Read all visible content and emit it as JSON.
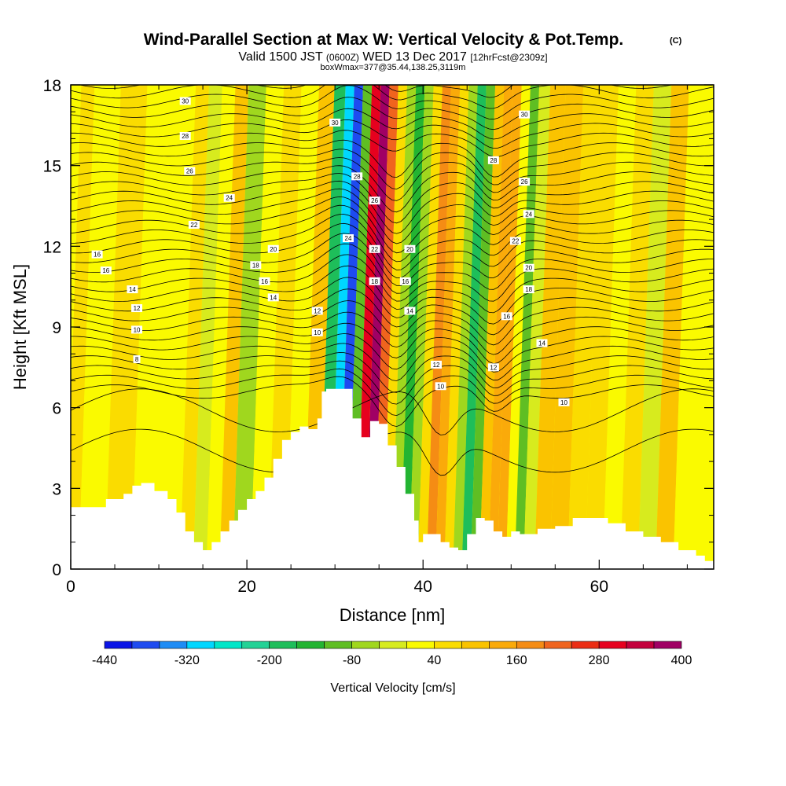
{
  "header": {
    "title": "Wind-Parallel Section at Max W: Vertical Velocity & Pot.Temp.",
    "title_mark": "(C)",
    "valid_prefix": "Valid 1500 JST",
    "valid_utc": "(0600Z)",
    "valid_date": "WED 13 Dec 2017",
    "forecast": "[12hrFcst@2309z]",
    "boxline": "boxWmax=377@35.44,138.25,3119m"
  },
  "chart_data": {
    "type": "heatmap",
    "title": "Wind-Parallel Section at Max W: Vertical Velocity & Pot.Temp.",
    "xlabel": "Distance [nm]",
    "ylabel": "Height [Kft MSL]",
    "xlim": [
      0,
      73
    ],
    "ylim": [
      0,
      18
    ],
    "xticks": [
      0,
      20,
      40,
      60
    ],
    "yticks": [
      0,
      3,
      6,
      9,
      12,
      15,
      18
    ],
    "colorbar": {
      "label": "Vertical Velocity [cm/s]",
      "tick_labels": [
        "-440",
        "-320",
        "-200",
        "-80",
        "40",
        "160",
        "280",
        "400"
      ],
      "tick_values": [
        -440,
        -320,
        -200,
        -80,
        40,
        160,
        280,
        400
      ],
      "bins": [
        -440,
        -400,
        -360,
        -320,
        -280,
        -240,
        -200,
        -160,
        -120,
        -80,
        -40,
        0,
        40,
        80,
        120,
        160,
        200,
        240,
        280,
        320,
        360,
        400
      ],
      "colors": [
        "#0a14e6",
        "#1e4bf0",
        "#1e8cf5",
        "#00d7ff",
        "#00e6c8",
        "#23d296",
        "#1ebe5a",
        "#23b432",
        "#5fbe23",
        "#a0d71e",
        "#d7eb1e",
        "#fafa00",
        "#fadc00",
        "#fac300",
        "#faaa0a",
        "#f58c14",
        "#f0641e",
        "#eb2d14",
        "#e6001e",
        "#c3003c",
        "#a00064",
        "#78008c"
      ]
    },
    "velocity_columns": [
      {
        "x": 0,
        "w": 40
      },
      {
        "x": 3,
        "w": 20
      },
      {
        "x": 6,
        "w": 60
      },
      {
        "x": 9,
        "w": 10
      },
      {
        "x": 12,
        "w": 30
      },
      {
        "x": 14,
        "w": 70
      },
      {
        "x": 15,
        "w": -40
      },
      {
        "x": 17,
        "w": 10
      },
      {
        "x": 18,
        "w": 90
      },
      {
        "x": 20,
        "w": -70
      },
      {
        "x": 22,
        "w": 30
      },
      {
        "x": 24,
        "w": 60
      },
      {
        "x": 26,
        "w": 20
      },
      {
        "x": 28,
        "w": 80
      },
      {
        "x": 29.5,
        "w": -200
      },
      {
        "x": 30.5,
        "w": -320
      },
      {
        "x": 31.5,
        "w": -400
      },
      {
        "x": 32.5,
        "w": -120
      },
      {
        "x": 33.5,
        "w": 290
      },
      {
        "x": 34.5,
        "w": 360
      },
      {
        "x": 35.5,
        "w": 230
      },
      {
        "x": 36.5,
        "w": 70
      },
      {
        "x": 37.5,
        "w": -80
      },
      {
        "x": 38.5,
        "w": -150
      },
      {
        "x": 39.5,
        "w": -60
      },
      {
        "x": 40.5,
        "w": 50
      },
      {
        "x": 41.5,
        "w": 160
      },
      {
        "x": 42.5,
        "w": 130
      },
      {
        "x": 43.5,
        "w": 60
      },
      {
        "x": 44.5,
        "w": -80
      },
      {
        "x": 45.5,
        "w": -200
      },
      {
        "x": 46.5,
        "w": -120
      },
      {
        "x": 47.5,
        "w": 80
      },
      {
        "x": 48.5,
        "w": 150
      },
      {
        "x": 49.5,
        "w": 120
      },
      {
        "x": 50.5,
        "w": 20
      },
      {
        "x": 51.5,
        "w": -110
      },
      {
        "x": 52.5,
        "w": -40
      },
      {
        "x": 54,
        "w": 110
      },
      {
        "x": 56,
        "w": 90
      },
      {
        "x": 58,
        "w": 40
      },
      {
        "x": 60,
        "w": 70
      },
      {
        "x": 62,
        "w": 20
      },
      {
        "x": 64,
        "w": 50
      },
      {
        "x": 66,
        "w": -40
      },
      {
        "x": 68,
        "w": 90
      },
      {
        "x": 70,
        "w": 30
      },
      {
        "x": 72,
        "w": 20
      }
    ],
    "terrain": [
      [
        0,
        2.3
      ],
      [
        2,
        2.3
      ],
      [
        4,
        2.6
      ],
      [
        6,
        2.8
      ],
      [
        7,
        3.1
      ],
      [
        8,
        3.2
      ],
      [
        9.5,
        2.9
      ],
      [
        11,
        2.6
      ],
      [
        12,
        2.1
      ],
      [
        13,
        1.4
      ],
      [
        14,
        1.0
      ],
      [
        15,
        0.7
      ],
      [
        16,
        1.0
      ],
      [
        17,
        1.4
      ],
      [
        18,
        1.8
      ],
      [
        19,
        2.2
      ],
      [
        20,
        2.6
      ],
      [
        21,
        2.9
      ],
      [
        22,
        3.4
      ],
      [
        23,
        4.1
      ],
      [
        24,
        4.8
      ],
      [
        25,
        5.1
      ],
      [
        26,
        5.3
      ],
      [
        27,
        5.2
      ],
      [
        28,
        5.6
      ],
      [
        28.5,
        6.6
      ],
      [
        29,
        6.7
      ],
      [
        31,
        6.7
      ],
      [
        32,
        5.6
      ],
      [
        33,
        4.9
      ],
      [
        34,
        5.5
      ],
      [
        35,
        5.4
      ],
      [
        36,
        4.6
      ],
      [
        37,
        3.8
      ],
      [
        38,
        2.8
      ],
      [
        39,
        1.8
      ],
      [
        39.5,
        1.0
      ],
      [
        40,
        1.3
      ],
      [
        41,
        1.3
      ],
      [
        42,
        1.0
      ],
      [
        43,
        0.8
      ],
      [
        44,
        0.7
      ],
      [
        45,
        1.3
      ],
      [
        46,
        1.9
      ],
      [
        47,
        1.8
      ],
      [
        48,
        1.4
      ],
      [
        49,
        1.2
      ],
      [
        50,
        1.4
      ],
      [
        51,
        1.3
      ],
      [
        53,
        1.5
      ],
      [
        55,
        1.6
      ],
      [
        57,
        1.9
      ],
      [
        59,
        1.9
      ],
      [
        61,
        1.7
      ],
      [
        63,
        1.4
      ],
      [
        65,
        1.2
      ],
      [
        67,
        1.0
      ],
      [
        69,
        0.7
      ],
      [
        71,
        0.5
      ],
      [
        72,
        0.3
      ],
      [
        73,
        0.3
      ]
    ],
    "theta_labels": [
      {
        "text": "30",
        "x": 13,
        "y": 17.4
      },
      {
        "text": "28",
        "x": 13,
        "y": 16.1
      },
      {
        "text": "26",
        "x": 13.5,
        "y": 14.8
      },
      {
        "text": "24",
        "x": 18,
        "y": 13.8
      },
      {
        "text": "22",
        "x": 14,
        "y": 12.8
      },
      {
        "text": "20",
        "x": 23,
        "y": 11.9
      },
      {
        "text": "18",
        "x": 21,
        "y": 11.3
      },
      {
        "text": "16",
        "x": 22,
        "y": 10.7
      },
      {
        "text": "14",
        "x": 23,
        "y": 10.1
      },
      {
        "text": "12",
        "x": 28,
        "y": 9.6
      },
      {
        "text": "10",
        "x": 28,
        "y": 8.8
      },
      {
        "text": "16",
        "x": 3,
        "y": 11.7
      },
      {
        "text": "16",
        "x": 4,
        "y": 11.1
      },
      {
        "text": "14",
        "x": 7,
        "y": 10.4
      },
      {
        "text": "12",
        "x": 7.5,
        "y": 9.7
      },
      {
        "text": "10",
        "x": 7.5,
        "y": 8.9
      },
      {
        "text": "8",
        "x": 7.5,
        "y": 7.8
      },
      {
        "text": "30",
        "x": 30,
        "y": 16.6
      },
      {
        "text": "28",
        "x": 32.5,
        "y": 14.6
      },
      {
        "text": "26",
        "x": 34.5,
        "y": 13.7
      },
      {
        "text": "24",
        "x": 31.5,
        "y": 12.3
      },
      {
        "text": "22",
        "x": 34.5,
        "y": 11.9
      },
      {
        "text": "18",
        "x": 34.5,
        "y": 10.7
      },
      {
        "text": "20",
        "x": 38.5,
        "y": 11.9
      },
      {
        "text": "16",
        "x": 38,
        "y": 10.7
      },
      {
        "text": "14",
        "x": 38.5,
        "y": 9.6
      },
      {
        "text": "12",
        "x": 41.5,
        "y": 7.6
      },
      {
        "text": "10",
        "x": 42,
        "y": 6.8
      },
      {
        "text": "30",
        "x": 51.5,
        "y": 16.9
      },
      {
        "text": "28",
        "x": 48,
        "y": 15.2
      },
      {
        "text": "26",
        "x": 51.5,
        "y": 14.4
      },
      {
        "text": "24",
        "x": 52,
        "y": 13.2
      },
      {
        "text": "22",
        "x": 50.5,
        "y": 12.2
      },
      {
        "text": "20",
        "x": 52,
        "y": 11.2
      },
      {
        "text": "18",
        "x": 52,
        "y": 10.4
      },
      {
        "text": "16",
        "x": 49.5,
        "y": 9.4
      },
      {
        "text": "14",
        "x": 53.5,
        "y": 8.4
      },
      {
        "text": "12",
        "x": 48,
        "y": 7.5
      },
      {
        "text": "10",
        "x": 56,
        "y": 6.2
      }
    ]
  }
}
